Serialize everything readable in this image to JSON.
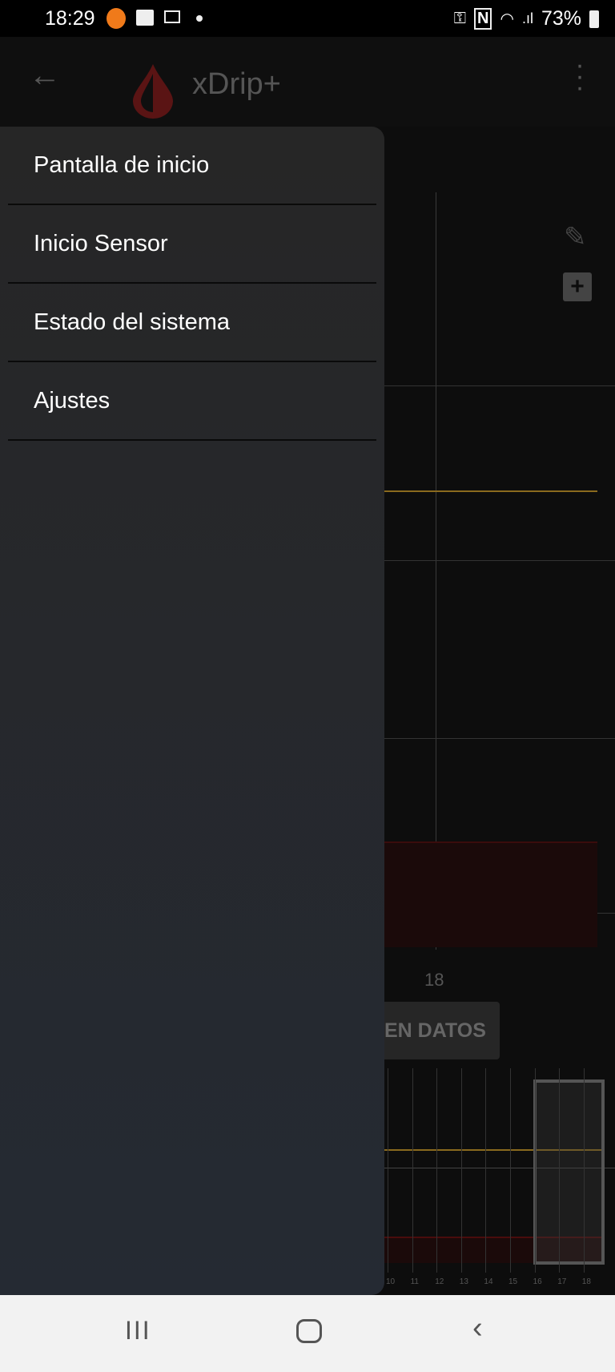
{
  "status_bar": {
    "time": "18:29",
    "battery": "73%",
    "icons": [
      "app-notification-icon",
      "image-icon",
      "mail-forward-icon",
      "dot-icon",
      "vpn-key-icon",
      "nfc-icon",
      "wifi-icon",
      "signal-icon",
      "battery-icon"
    ]
  },
  "app_bar": {
    "title": "xDrip+",
    "icons": [
      "back-arrow-icon",
      "xdrip-drop-logo",
      "more-vert-icon"
    ]
  },
  "drawer": {
    "items": [
      {
        "label": "Pantalla de inicio"
      },
      {
        "label": "Inicio Sensor"
      },
      {
        "label": "Estado del sistema"
      },
      {
        "label": "Ajustes"
      }
    ]
  },
  "main": {
    "x_label": "18",
    "button_label": "EN DATOS"
  },
  "preview": {
    "hours": [
      "10",
      "11",
      "12",
      "13",
      "14",
      "15",
      "16",
      "17",
      "18"
    ]
  },
  "colors": {
    "high_line": "#8a6a1e",
    "low_band": "#1b0a0a",
    "low_line": "#5a0f0f",
    "logo": "#5a1414"
  }
}
